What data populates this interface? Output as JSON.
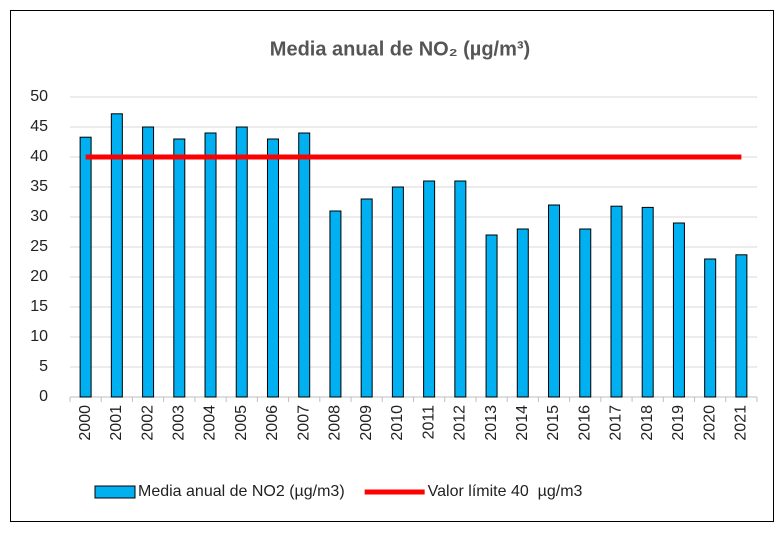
{
  "chart_data": {
    "type": "bar",
    "title": "Media anual de NO₂ (µg/m³)",
    "categories": [
      "2000",
      "2001",
      "2002",
      "2003",
      "2004",
      "2005",
      "2006",
      "2007",
      "2008",
      "2009",
      "2010",
      "2011",
      "2012",
      "2013",
      "2014",
      "2015",
      "2016",
      "2017",
      "2018",
      "2019",
      "2020",
      "2021"
    ],
    "series": [
      {
        "name": "Media anual de NO2 (µg/m3)",
        "type": "bar",
        "color": "#00b0f0",
        "values": [
          43.3,
          47.2,
          45,
          43,
          44,
          45,
          43,
          44,
          31,
          33,
          35,
          36,
          36,
          27,
          28,
          32,
          28,
          31.8,
          31.6,
          29,
          23,
          23.7
        ]
      },
      {
        "name": "Valor límite 40  µg/m3",
        "type": "line",
        "color": "#ff0000",
        "values": [
          40,
          40,
          40,
          40,
          40,
          40,
          40,
          40,
          40,
          40,
          40,
          40,
          40,
          40,
          40,
          40,
          40,
          40,
          40,
          40,
          40,
          40
        ]
      }
    ],
    "ylim": [
      0,
      50
    ],
    "yticks": [
      0,
      5,
      10,
      15,
      20,
      25,
      30,
      35,
      40,
      45,
      50
    ],
    "grid": true,
    "legend": "bottom"
  }
}
